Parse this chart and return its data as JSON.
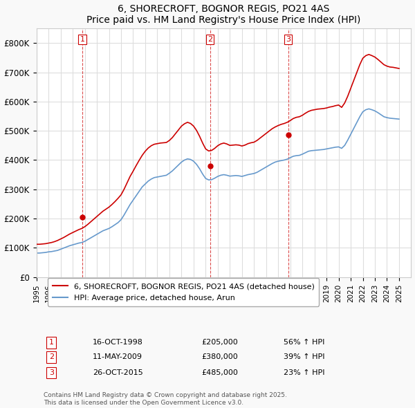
{
  "title": "6, SHORECROFT, BOGNOR REGIS, PO21 4AS",
  "subtitle": "Price paid vs. HM Land Registry's House Price Index (HPI)",
  "xlabel": "",
  "ylabel": "",
  "ylim": [
    0,
    850000
  ],
  "yticks": [
    0,
    100000,
    200000,
    300000,
    400000,
    500000,
    600000,
    700000,
    800000
  ],
  "ytick_labels": [
    "£0",
    "£100K",
    "£200K",
    "£300K",
    "£400K",
    "£500K",
    "£600K",
    "£700K",
    "£800K"
  ],
  "xlim_start": 1995.0,
  "xlim_end": 2026.0,
  "bg_color": "#f9f9f9",
  "plot_bg_color": "#ffffff",
  "grid_color": "#dddddd",
  "red_line_color": "#cc0000",
  "blue_line_color": "#6699cc",
  "sale_marker_color": "#cc0000",
  "sale_dashed_color": "#cc0000",
  "legend_label_red": "6, SHORECROFT, BOGNOR REGIS, PO21 4AS (detached house)",
  "legend_label_blue": "HPI: Average price, detached house, Arun",
  "transactions": [
    {
      "label": "1",
      "date": 1998.79,
      "price": 205000,
      "text": "16-OCT-1998",
      "pct": "56% ↑ HPI"
    },
    {
      "label": "2",
      "date": 2009.36,
      "price": 380000,
      "text": "11-MAY-2009",
      "pct": "39% ↑ HPI"
    },
    {
      "label": "3",
      "date": 2015.82,
      "price": 485000,
      "text": "26-OCT-2015",
      "pct": "23% ↑ HPI"
    }
  ],
  "footnote": "Contains HM Land Registry data © Crown copyright and database right 2025.\nThis data is licensed under the Open Government Licence v3.0.",
  "hpi_data": {
    "years": [
      1995.0,
      1995.25,
      1995.5,
      1995.75,
      1996.0,
      1996.25,
      1996.5,
      1996.75,
      1997.0,
      1997.25,
      1997.5,
      1997.75,
      1998.0,
      1998.25,
      1998.5,
      1998.75,
      1999.0,
      1999.25,
      1999.5,
      1999.75,
      2000.0,
      2000.25,
      2000.5,
      2000.75,
      2001.0,
      2001.25,
      2001.5,
      2001.75,
      2002.0,
      2002.25,
      2002.5,
      2002.75,
      2003.0,
      2003.25,
      2003.5,
      2003.75,
      2004.0,
      2004.25,
      2004.5,
      2004.75,
      2005.0,
      2005.25,
      2005.5,
      2005.75,
      2006.0,
      2006.25,
      2006.5,
      2006.75,
      2007.0,
      2007.25,
      2007.5,
      2007.75,
      2008.0,
      2008.25,
      2008.5,
      2008.75,
      2009.0,
      2009.25,
      2009.5,
      2009.75,
      2010.0,
      2010.25,
      2010.5,
      2010.75,
      2011.0,
      2011.25,
      2011.5,
      2011.75,
      2012.0,
      2012.25,
      2012.5,
      2012.75,
      2013.0,
      2013.25,
      2013.5,
      2013.75,
      2014.0,
      2014.25,
      2014.5,
      2014.75,
      2015.0,
      2015.25,
      2015.5,
      2015.75,
      2016.0,
      2016.25,
      2016.5,
      2016.75,
      2017.0,
      2017.25,
      2017.5,
      2017.75,
      2018.0,
      2018.25,
      2018.5,
      2018.75,
      2019.0,
      2019.25,
      2019.5,
      2019.75,
      2020.0,
      2020.25,
      2020.5,
      2020.75,
      2021.0,
      2021.25,
      2021.5,
      2021.75,
      2022.0,
      2022.25,
      2022.5,
      2022.75,
      2023.0,
      2023.25,
      2023.5,
      2023.75,
      2024.0,
      2024.25,
      2024.5,
      2024.75,
      2025.0
    ],
    "values": [
      82000,
      82000,
      83000,
      84000,
      86000,
      87000,
      89000,
      91000,
      95000,
      99000,
      103000,
      107000,
      110000,
      113000,
      116000,
      118000,
      122000,
      128000,
      134000,
      140000,
      146000,
      152000,
      158000,
      162000,
      166000,
      172000,
      179000,
      186000,
      196000,
      212000,
      230000,
      248000,
      263000,
      278000,
      293000,
      308000,
      318000,
      328000,
      335000,
      340000,
      342000,
      344000,
      346000,
      348000,
      355000,
      363000,
      373000,
      383000,
      393000,
      400000,
      404000,
      402000,
      396000,
      385000,
      370000,
      352000,
      337000,
      332000,
      333000,
      338000,
      344000,
      348000,
      350000,
      348000,
      345000,
      346000,
      347000,
      346000,
      344000,
      347000,
      350000,
      352000,
      354000,
      358000,
      364000,
      370000,
      376000,
      382000,
      388000,
      393000,
      396000,
      398000,
      400000,
      403000,
      408000,
      413000,
      415000,
      416000,
      420000,
      425000,
      430000,
      432000,
      433000,
      434000,
      435000,
      436000,
      438000,
      440000,
      442000,
      444000,
      445000,
      440000,
      450000,
      468000,
      488000,
      508000,
      528000,
      548000,
      565000,
      572000,
      575000,
      572000,
      568000,
      562000,
      555000,
      548000,
      545000,
      543000,
      542000,
      541000,
      540000
    ]
  },
  "price_data": {
    "years": [
      1995.0,
      1995.25,
      1995.5,
      1995.75,
      1996.0,
      1996.25,
      1996.5,
      1996.75,
      1997.0,
      1997.25,
      1997.5,
      1997.75,
      1998.0,
      1998.25,
      1998.5,
      1998.75,
      1999.0,
      1999.25,
      1999.5,
      1999.75,
      2000.0,
      2000.25,
      2000.5,
      2000.75,
      2001.0,
      2001.25,
      2001.5,
      2001.75,
      2002.0,
      2002.25,
      2002.5,
      2002.75,
      2003.0,
      2003.25,
      2003.5,
      2003.75,
      2004.0,
      2004.25,
      2004.5,
      2004.75,
      2005.0,
      2005.25,
      2005.5,
      2005.75,
      2006.0,
      2006.25,
      2006.5,
      2006.75,
      2007.0,
      2007.25,
      2007.5,
      2007.75,
      2008.0,
      2008.25,
      2008.5,
      2008.75,
      2009.0,
      2009.25,
      2009.5,
      2009.75,
      2010.0,
      2010.25,
      2010.5,
      2010.75,
      2011.0,
      2011.25,
      2011.5,
      2011.75,
      2012.0,
      2012.25,
      2012.5,
      2012.75,
      2013.0,
      2013.25,
      2013.5,
      2013.75,
      2014.0,
      2014.25,
      2014.5,
      2014.75,
      2015.0,
      2015.25,
      2015.5,
      2015.75,
      2016.0,
      2016.25,
      2016.5,
      2016.75,
      2017.0,
      2017.25,
      2017.5,
      2017.75,
      2018.0,
      2018.25,
      2018.5,
      2018.75,
      2019.0,
      2019.25,
      2019.5,
      2019.75,
      2020.0,
      2020.25,
      2020.5,
      2020.75,
      2021.0,
      2021.25,
      2021.5,
      2021.75,
      2022.0,
      2022.25,
      2022.5,
      2022.75,
      2023.0,
      2023.25,
      2023.5,
      2023.75,
      2024.0,
      2024.25,
      2024.5,
      2024.75,
      2025.0
    ],
    "values": [
      112000,
      112000,
      113000,
      114000,
      116000,
      118000,
      121000,
      125000,
      130000,
      135000,
      141000,
      147000,
      152000,
      157000,
      162000,
      166000,
      172000,
      180000,
      189000,
      198000,
      207000,
      216000,
      225000,
      232000,
      239000,
      248000,
      258000,
      269000,
      281000,
      300000,
      322000,
      344000,
      362000,
      381000,
      399000,
      416000,
      430000,
      441000,
      449000,
      454000,
      456000,
      458000,
      459000,
      460000,
      467000,
      477000,
      490000,
      503000,
      516000,
      524000,
      529000,
      525000,
      516000,
      501000,
      481000,
      458000,
      438000,
      431000,
      433000,
      440000,
      449000,
      455000,
      458000,
      455000,
      450000,
      451000,
      452000,
      451000,
      448000,
      451000,
      456000,
      459000,
      461000,
      467000,
      475000,
      483000,
      491000,
      499000,
      507000,
      513000,
      518000,
      522000,
      525000,
      529000,
      535000,
      542000,
      546000,
      548000,
      553000,
      560000,
      566000,
      570000,
      572000,
      574000,
      575000,
      576000,
      578000,
      581000,
      583000,
      586000,
      588000,
      580000,
      595000,
      618000,
      645000,
      672000,
      699000,
      726000,
      748000,
      757000,
      761000,
      757000,
      752000,
      744000,
      735000,
      726000,
      721000,
      718000,
      717000,
      715000,
      713000
    ]
  }
}
